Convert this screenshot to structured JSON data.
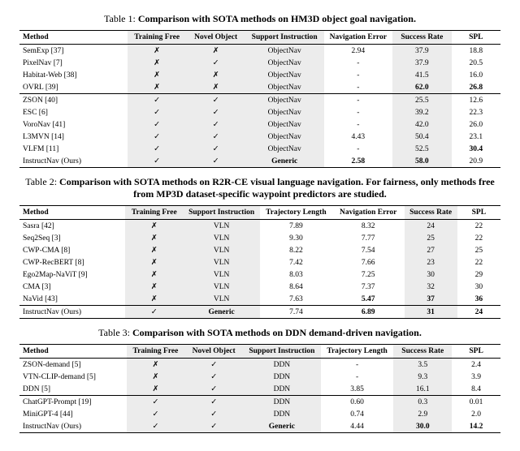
{
  "table1": {
    "caption_prefix": "Table 1: ",
    "caption_bold": "Comparison with SOTA methods on HM3D object goal navigation.",
    "columns": [
      "Method",
      "Training Free",
      "Novel Object",
      "Support Instruction",
      "Navigation Error",
      "Success Rate",
      "SPL"
    ],
    "groups": [
      [
        {
          "m": "SemExp [37]",
          "tf": false,
          "no": false,
          "si": "ObjectNav",
          "ne": "2.94",
          "sr": "37.9",
          "spl": "18.8"
        },
        {
          "m": "PixelNav [7]",
          "tf": false,
          "no": true,
          "si": "ObjectNav",
          "ne": "-",
          "sr": "37.9",
          "spl": "20.5"
        },
        {
          "m": "Habitat-Web [38]",
          "tf": false,
          "no": false,
          "si": "ObjectNav",
          "ne": "-",
          "sr": "41.5",
          "spl": "16.0"
        },
        {
          "m": "OVRL [39]",
          "tf": false,
          "no": false,
          "si": "ObjectNav",
          "ne": "-",
          "sr": "62.0",
          "sr_b": true,
          "spl": "26.8",
          "spl_b": true
        }
      ],
      [
        {
          "m": "ZSON [40]",
          "tf": true,
          "no": true,
          "si": "ObjectNav",
          "ne": "-",
          "sr": "25.5",
          "spl": "12.6"
        },
        {
          "m": "ESC [6]",
          "tf": true,
          "no": true,
          "si": "ObjectNav",
          "ne": "-",
          "sr": "39.2",
          "spl": "22.3"
        },
        {
          "m": "VoroNav [41]",
          "tf": true,
          "no": true,
          "si": "ObjectNav",
          "ne": "-",
          "sr": "42.0",
          "spl": "26.0"
        },
        {
          "m": "L3MVN [14]",
          "tf": true,
          "no": true,
          "si": "ObjectNav",
          "ne": "4.43",
          "sr": "50.4",
          "spl": "23.1"
        },
        {
          "m": "VLFM [11]",
          "tf": true,
          "no": true,
          "si": "ObjectNav",
          "ne": "-",
          "sr": "52.5",
          "spl": "30.4",
          "spl_b": true
        },
        {
          "m": "InstructNav (Ours)",
          "tf": true,
          "no": true,
          "si": "Generic",
          "si_b": true,
          "ne": "2.58",
          "ne_b": true,
          "sr": "58.0",
          "sr_b": true,
          "spl": "20.9"
        }
      ]
    ],
    "shaded_cols": [
      1,
      2,
      3,
      5
    ],
    "col_widths": [
      "22%",
      "12%",
      "12%",
      "16%",
      "14%",
      "12%",
      "10%"
    ]
  },
  "table2": {
    "caption_prefix": "Table 2: ",
    "caption_bold": "Comparison with SOTA methods on R2R-CE visual language navigation. For fairness, only methods free from MP3D dataset-specific waypoint predictors are studied.",
    "columns": [
      "Method",
      "Training Free",
      "Support Instruction",
      "Trajectory Length",
      "Navigation Error",
      "Success Rate",
      "SPL"
    ],
    "groups": [
      [
        {
          "m": "Sasra [42]",
          "tf": false,
          "si": "VLN",
          "tl": "7.89",
          "ne": "8.32",
          "sr": "24",
          "spl": "22"
        },
        {
          "m": "Seq2Seq [3]",
          "tf": false,
          "si": "VLN",
          "tl": "9.30",
          "ne": "7.77",
          "sr": "25",
          "spl": "22"
        },
        {
          "m": "CWP-CMA [8]",
          "tf": false,
          "si": "VLN",
          "tl": "8.22",
          "ne": "7.54",
          "sr": "27",
          "spl": "25"
        },
        {
          "m": "CWP-RecBERT [8]",
          "tf": false,
          "si": "VLN",
          "tl": "7.42",
          "ne": "7.66",
          "sr": "23",
          "spl": "22"
        },
        {
          "m": "Ego2Map-NaViT [9]",
          "tf": false,
          "si": "VLN",
          "tl": "8.03",
          "ne": "7.25",
          "sr": "30",
          "spl": "29"
        },
        {
          "m": "CMA [3]",
          "tf": false,
          "si": "VLN",
          "tl": "8.64",
          "ne": "7.37",
          "sr": "32",
          "spl": "30"
        },
        {
          "m": "NaVid [43]",
          "tf": false,
          "si": "VLN",
          "tl": "7.63",
          "ne": "5.47",
          "ne_b": true,
          "sr": "37",
          "sr_b": true,
          "spl": "36",
          "spl_b": true
        }
      ],
      [
        {
          "m": "InstructNav (Ours)",
          "tf": true,
          "si": "Generic",
          "si_b": true,
          "tl": "7.74",
          "ne": "6.89",
          "ne_b": true,
          "sr": "31",
          "sr_b": true,
          "spl": "24",
          "spl_b": true
        }
      ]
    ],
    "shaded_cols": [
      1,
      2,
      5
    ],
    "col_widths": [
      "22%",
      "12%",
      "16%",
      "15%",
      "15%",
      "11%",
      "9%"
    ]
  },
  "table3": {
    "caption_prefix": "Table 3: ",
    "caption_bold": "Comparison with SOTA methods on DDN demand-driven navigation.",
    "columns": [
      "Method",
      "Training Free",
      "Novel Object",
      "Support Instruction",
      "Trajectory Length",
      "Success Rate",
      "SPL"
    ],
    "groups": [
      [
        {
          "m": "ZSON-demand [5]",
          "tf": false,
          "no": true,
          "si": "DDN",
          "tl": "-",
          "sr": "3.5",
          "spl": "2.4"
        },
        {
          "m": "VTN-CLIP-demand [5]",
          "tf": false,
          "no": true,
          "si": "DDN",
          "tl": "-",
          "sr": "9.3",
          "spl": "3.9"
        },
        {
          "m": "DDN [5]",
          "tf": false,
          "no": true,
          "si": "DDN",
          "tl": "3.85",
          "sr": "16.1",
          "spl": "8.4"
        }
      ],
      [
        {
          "m": "ChatGPT-Prompt [19]",
          "tf": true,
          "no": true,
          "si": "DDN",
          "tl": "0.60",
          "sr": "0.3",
          "spl": "0.01"
        },
        {
          "m": "MiniGPT-4 [44]",
          "tf": true,
          "no": true,
          "si": "DDN",
          "tl": "0.74",
          "sr": "2.9",
          "spl": "2.0"
        },
        {
          "m": "InstructNav (Ours)",
          "tf": true,
          "no": true,
          "si": "Generic",
          "si_b": true,
          "tl": "4.44",
          "sr": "30.0",
          "sr_b": true,
          "spl": "14.2",
          "spl_b": true
        }
      ]
    ],
    "shaded_cols": [
      1,
      2,
      3,
      5
    ],
    "col_widths": [
      "22%",
      "12%",
      "12%",
      "16%",
      "15%",
      "12%",
      "10%"
    ]
  }
}
